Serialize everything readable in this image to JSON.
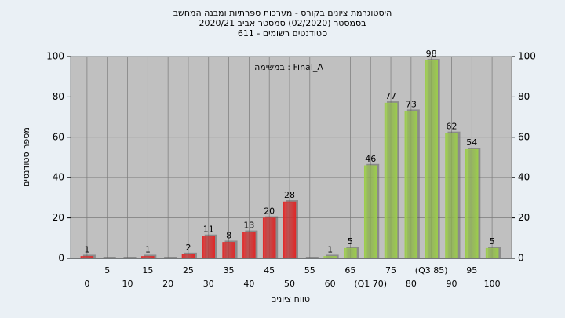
{
  "chart_data": {
    "type": "bar",
    "title": "היסטוגרמת ציונים בקורס - מערכות ספרתיות ומבנה המחשב",
    "subtitle": "בסמסטר  (02/2020)  סמסטר אביב 2020/21",
    "subtitle2": "סטודנטים רשומים - 611",
    "annotation": "במשימה : Final_A",
    "y_label": "מספר סטודנטים",
    "x_label": "טווח ציונים",
    "categories": [
      "0",
      "5",
      "10",
      "15",
      "20",
      "25",
      "30",
      "35",
      "40",
      "45",
      "50",
      "55",
      "60",
      "65",
      "(Q1 70)",
      "75",
      "80",
      "(Q3 85)",
      "90",
      "95",
      "100"
    ],
    "values": [
      1,
      0,
      0,
      1,
      0,
      2,
      11,
      8,
      13,
      20,
      28,
      0,
      1,
      5,
      46,
      77,
      73,
      98,
      62,
      54,
      5
    ],
    "colors": [
      "#e02828",
      "#e02828",
      "#e02828",
      "#e02828",
      "#e02828",
      "#e02828",
      "#e02828",
      "#e02828",
      "#e02828",
      "#e02828",
      "#e02828",
      "#e02828",
      "#9ccc4c",
      "#9ccc4c",
      "#9ccc4c",
      "#9ccc4c",
      "#9ccc4c",
      "#9ccc4c",
      "#9ccc4c",
      "#9ccc4c",
      "#9ccc4c"
    ],
    "ylim": [
      0,
      100
    ],
    "yticks": [
      0,
      20,
      40,
      60,
      80,
      100
    ],
    "grid": true
  }
}
